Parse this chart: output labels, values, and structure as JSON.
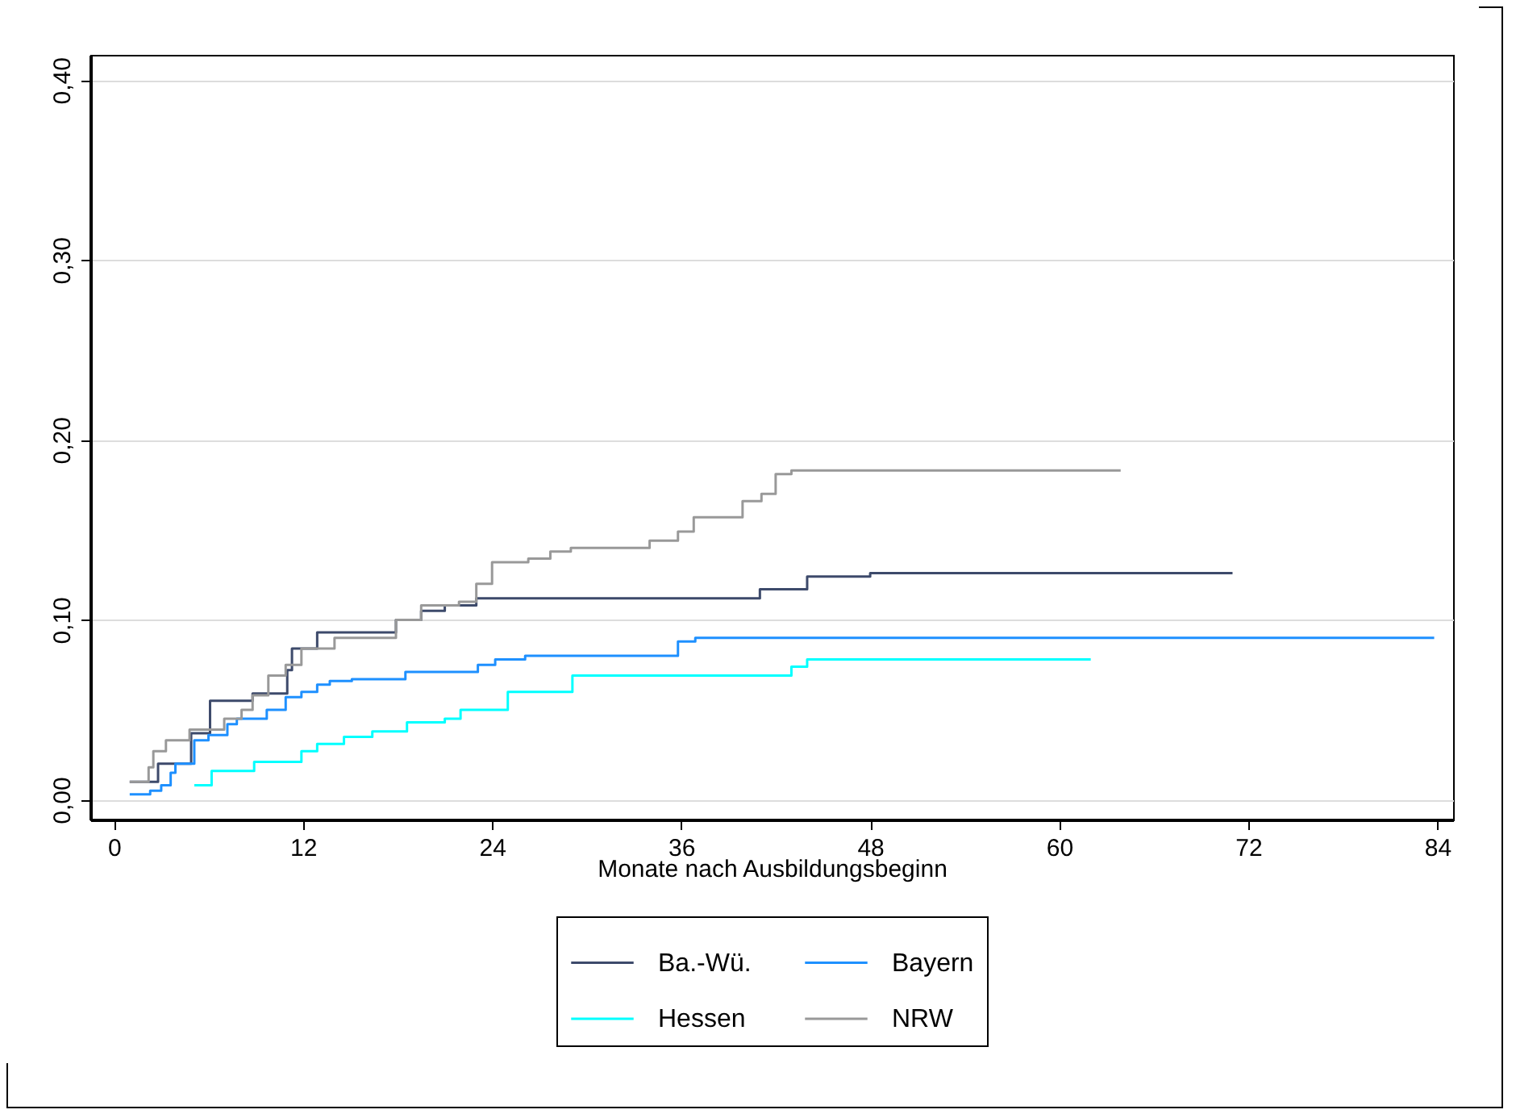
{
  "chart_data": {
    "type": "step",
    "xlabel": "Monate nach Ausbildungsbeginn",
    "xlim": [
      -1.5,
      85
    ],
    "xticks": [
      0,
      12,
      24,
      36,
      48,
      60,
      72,
      84
    ],
    "ylim": [
      -0.011,
      0.414
    ],
    "yticks": [
      {
        "value": 0,
        "label": "0,00"
      },
      {
        "value": 0.1,
        "label": "0,10"
      },
      {
        "value": 0.2,
        "label": "0,20"
      },
      {
        "value": 0.3,
        "label": "0,30"
      },
      {
        "value": 0.4,
        "label": "0,40"
      }
    ],
    "grid": "y",
    "legend": "bottom",
    "series": [
      {
        "name": "Ba.-Wü.",
        "color": "#3d4a6b",
        "x": [
          1,
          2.8,
          4.9,
          6.1,
          8.8,
          11,
          11.3,
          12.9,
          17.9,
          19.5,
          21,
          23,
          41,
          44,
          48,
          71
        ],
        "values": [
          0.01,
          0.02,
          0.037,
          0.055,
          0.059,
          0.072,
          0.084,
          0.093,
          0.1,
          0.105,
          0.108,
          0.112,
          0.117,
          0.124,
          0.126,
          0.126
        ]
      },
      {
        "name": "Bayern",
        "color": "#1e90ff",
        "x": [
          1,
          2.3,
          3,
          3.6,
          3.9,
          5.1,
          6,
          7.2,
          7.8,
          9.7,
          10.9,
          11.9,
          12.9,
          13.7,
          15.1,
          18.5,
          23.1,
          24.2,
          26.1,
          35.8,
          36.9,
          83.8
        ],
        "values": [
          0.003,
          0.005,
          0.008,
          0.015,
          0.02,
          0.033,
          0.036,
          0.042,
          0.045,
          0.05,
          0.057,
          0.06,
          0.064,
          0.066,
          0.067,
          0.071,
          0.075,
          0.078,
          0.08,
          0.088,
          0.09,
          0.09
        ]
      },
      {
        "name": "Hessen",
        "color": "#00ffff",
        "x": [
          5.1,
          6.2,
          8.9,
          11.9,
          12.9,
          14.6,
          16.4,
          18.6,
          21,
          22,
          25,
          29.1,
          43,
          44,
          62
        ],
        "values": [
          0.008,
          0.016,
          0.021,
          0.027,
          0.031,
          0.035,
          0.038,
          0.043,
          0.045,
          0.05,
          0.06,
          0.069,
          0.074,
          0.078,
          0.078
        ]
      },
      {
        "name": "NRW",
        "color": "#999999",
        "x": [
          1,
          2.2,
          2.5,
          3.3,
          4.8,
          7,
          8.1,
          8.8,
          9.8,
          10.9,
          11.9,
          14,
          17.9,
          19.5,
          21.9,
          23,
          24,
          26.3,
          27.7,
          29,
          34,
          35.8,
          36.8,
          39.9,
          41.1,
          42,
          43,
          63.9
        ],
        "values": [
          0.01,
          0.018,
          0.027,
          0.033,
          0.039,
          0.045,
          0.05,
          0.058,
          0.069,
          0.075,
          0.084,
          0.09,
          0.1,
          0.108,
          0.11,
          0.12,
          0.132,
          0.134,
          0.138,
          0.14,
          0.144,
          0.149,
          0.157,
          0.166,
          0.17,
          0.181,
          0.183,
          0.183
        ]
      }
    ]
  }
}
